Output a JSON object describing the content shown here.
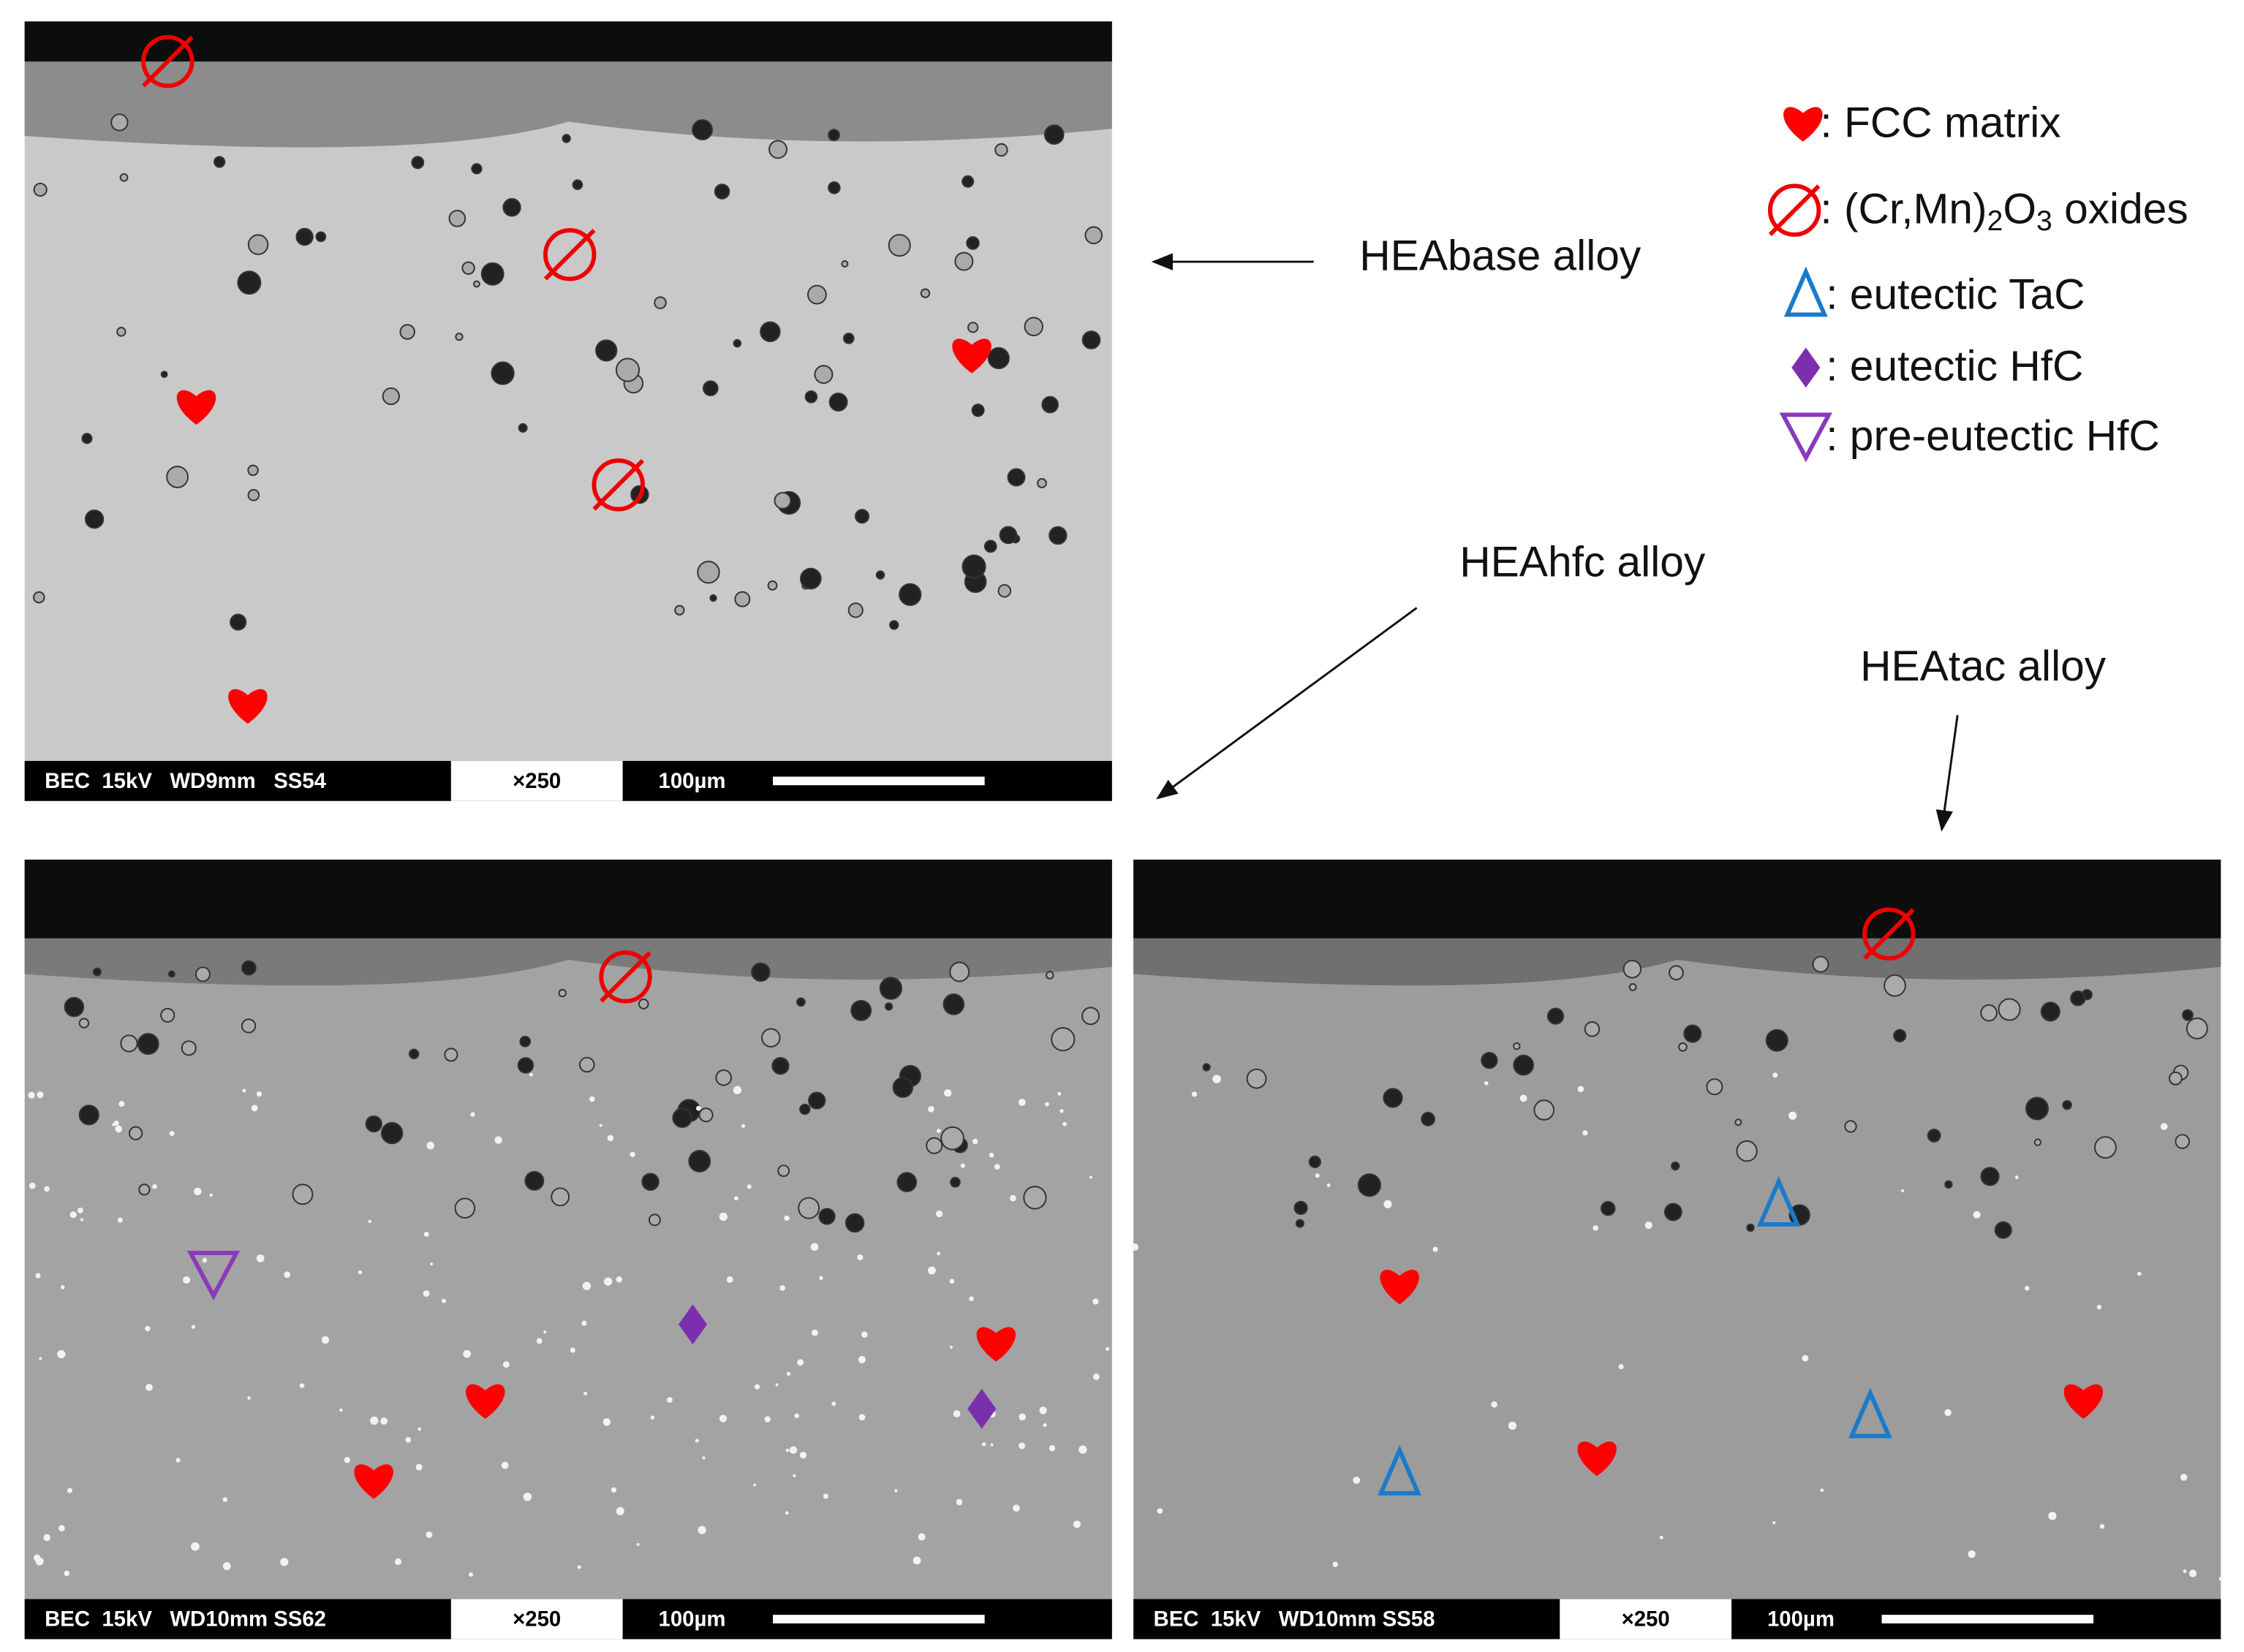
{
  "alloy_labels": [
    "HEAbase alloy",
    "HEAhfc alloy",
    "HEAtac alloy"
  ],
  "legend": [
    {
      "text": ": FCC matrix"
    },
    {
      "parts": [
        ": (Cr,Mn)",
        "2",
        "O",
        "3",
        " oxides"
      ]
    },
    {
      "text": ": eutectic TaC"
    },
    {
      "text": ": eutectic HfC"
    },
    {
      "text": ": pre-eutectic HfC"
    }
  ],
  "panels": [
    {
      "info": "BEC  15kV   WD9mm   SS54",
      "magnification": "×250",
      "scale": "100µm"
    },
    {
      "info": "BEC  15kV   WD10mm SS62",
      "magnification": "×250",
      "scale": "100µm"
    },
    {
      "info": "BEC  15kV   WD10mm SS58",
      "magnification": "×250",
      "scale": "100µm"
    }
  ]
}
